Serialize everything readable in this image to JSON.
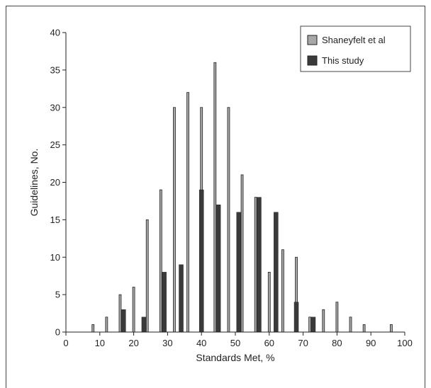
{
  "chart_data": {
    "type": "bar",
    "xlabel": "Standards Met, %",
    "ylabel": "Guidelines, No.",
    "xlim": [
      0,
      100
    ],
    "ylim": [
      0,
      40
    ],
    "xticks": [
      0,
      10,
      20,
      30,
      40,
      50,
      60,
      70,
      80,
      90,
      100
    ],
    "yticks": [
      0,
      5,
      10,
      15,
      20,
      25,
      30,
      35,
      40
    ],
    "grid": false,
    "legend_position": "top-right",
    "series": [
      {
        "name": "Shaneyfelt et al",
        "color": "#a8a8a8",
        "points": [
          {
            "x": 8,
            "y": 1
          },
          {
            "x": 12,
            "y": 2
          },
          {
            "x": 16,
            "y": 5
          },
          {
            "x": 20,
            "y": 6
          },
          {
            "x": 24,
            "y": 15
          },
          {
            "x": 28,
            "y": 19
          },
          {
            "x": 32,
            "y": 30
          },
          {
            "x": 36,
            "y": 32
          },
          {
            "x": 40,
            "y": 30
          },
          {
            "x": 44,
            "y": 36
          },
          {
            "x": 48,
            "y": 30
          },
          {
            "x": 52,
            "y": 21
          },
          {
            "x": 56,
            "y": 18
          },
          {
            "x": 60,
            "y": 8
          },
          {
            "x": 64,
            "y": 11
          },
          {
            "x": 68,
            "y": 10
          },
          {
            "x": 72,
            "y": 2
          },
          {
            "x": 76,
            "y": 3
          },
          {
            "x": 80,
            "y": 4
          },
          {
            "x": 84,
            "y": 2
          },
          {
            "x": 88,
            "y": 1
          },
          {
            "x": 96,
            "y": 1
          }
        ]
      },
      {
        "name": "This study",
        "color": "#3a3a3a",
        "points": [
          {
            "x": 17,
            "y": 3
          },
          {
            "x": 23,
            "y": 2
          },
          {
            "x": 29,
            "y": 8
          },
          {
            "x": 34,
            "y": 9
          },
          {
            "x": 40,
            "y": 19
          },
          {
            "x": 45,
            "y": 17
          },
          {
            "x": 51,
            "y": 16
          },
          {
            "x": 57,
            "y": 18
          },
          {
            "x": 62,
            "y": 16
          },
          {
            "x": 68,
            "y": 4
          },
          {
            "x": 73,
            "y": 2
          }
        ]
      }
    ]
  }
}
